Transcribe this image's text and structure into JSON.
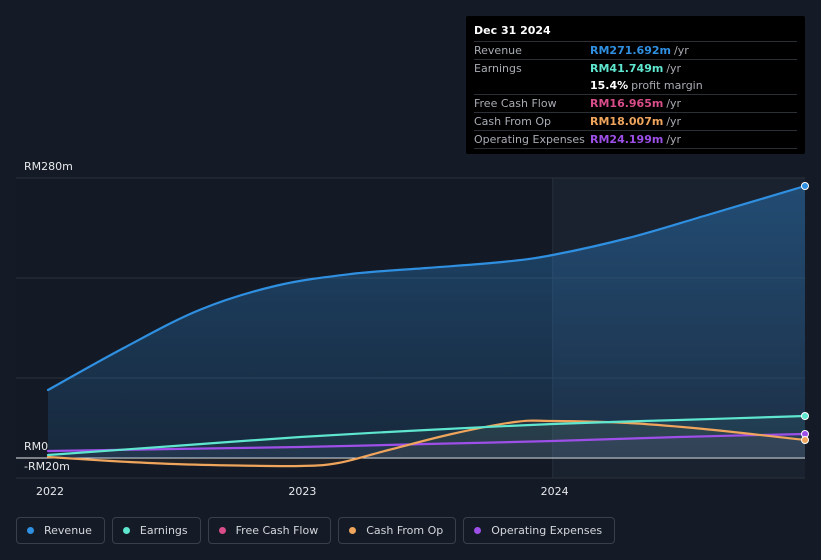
{
  "tooltip": {
    "date": "Dec 31 2024",
    "rows": [
      {
        "label": "Revenue",
        "value": "RM271.692m",
        "unit": "/yr",
        "color": "#2f8fe0"
      },
      {
        "label": "Earnings",
        "value": "RM41.749m",
        "unit": "/yr",
        "color": "#5ee6cf"
      },
      {
        "label": "",
        "value": "15.4%",
        "unit": "profit margin",
        "color": "#ffffff"
      },
      {
        "label": "Free Cash Flow",
        "value": "RM16.965m",
        "unit": "/yr",
        "color": "#d94d8a"
      },
      {
        "label": "Cash From Op",
        "value": "RM18.007m",
        "unit": "/yr",
        "color": "#f0a55c"
      },
      {
        "label": "Operating Expenses",
        "value": "RM24.199m",
        "unit": "/yr",
        "color": "#9d4fe8"
      }
    ]
  },
  "chart_data": {
    "type": "line",
    "y_labels": {
      "top": "RM280m",
      "zero": "RM0",
      "bottom": "-RM20m"
    },
    "ylim": [
      -20,
      280
    ],
    "xlim": [
      2022.0,
      2025.0
    ],
    "x_ticks": [
      {
        "value": 2022,
        "label": "2022"
      },
      {
        "value": 2023,
        "label": "2023"
      },
      {
        "value": 2024,
        "label": "2024"
      }
    ],
    "highlight_start": 2024.0,
    "series": [
      {
        "name": "Revenue",
        "color": "#2f8fe0",
        "fill": true,
        "x": [
          2022.0,
          2022.3,
          2022.6,
          2022.9,
          2023.2,
          2023.5,
          2023.8,
          2024.0,
          2024.3,
          2024.6,
          2025.0
        ],
        "values": [
          68,
          110,
          148,
          172,
          184,
          190,
          196,
          203,
          220,
          242,
          272
        ]
      },
      {
        "name": "Earnings",
        "color": "#5ee6cf",
        "fill": false,
        "x": [
          2022.0,
          2022.5,
          2023.0,
          2023.5,
          2024.0,
          2024.5,
          2025.0
        ],
        "values": [
          3,
          12,
          21,
          28,
          34,
          38,
          42
        ]
      },
      {
        "name": "Free Cash Flow",
        "color": "#d94d8a",
        "fill": false,
        "x": [
          2022.0,
          2022.5,
          2023.0,
          2023.5,
          2024.0,
          2024.5,
          2025.0
        ],
        "values": [
          0,
          -5,
          -8,
          15,
          36,
          30,
          17
        ]
      },
      {
        "name": "Cash From Op",
        "color": "#f0a55c",
        "fill": false,
        "x": [
          2022.0,
          2022.25,
          2022.5,
          2022.75,
          2023.0,
          2023.15,
          2023.35,
          2023.6,
          2023.85,
          2024.0,
          2024.3,
          2024.6,
          2025.0
        ],
        "values": [
          1,
          -3,
          -6,
          -7.5,
          -8,
          -5,
          8,
          24,
          36,
          37,
          35,
          29,
          18
        ]
      },
      {
        "name": "Operating Expenses",
        "color": "#9d4fe8",
        "fill": false,
        "x": [
          2022.0,
          2022.5,
          2023.0,
          2023.5,
          2024.0,
          2024.5,
          2025.0
        ],
        "values": [
          7,
          9,
          11,
          14,
          17,
          21,
          24
        ]
      }
    ]
  },
  "legend": [
    "Revenue",
    "Earnings",
    "Free Cash Flow",
    "Cash From Op",
    "Operating Expenses"
  ]
}
